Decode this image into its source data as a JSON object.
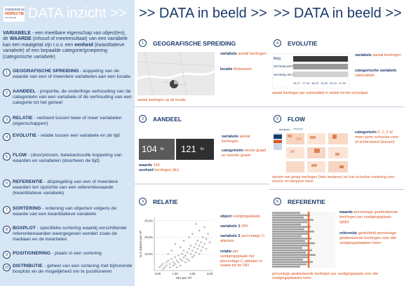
{
  "logo": {
    "line1": "ONDERWIJS",
    "line2": "INSPECTIE",
    "line3": "ocw onderwijs"
  },
  "titles": {
    "col1": "DATA inzicht >>",
    "col2": ">> DATA in beeld >>",
    "col3": ">> DATA in beeld >>"
  },
  "intro": {
    "term1": "VARIABELE",
    "t1": " - een meetbare eigenschap van ",
    "t1i": "object(en)",
    "t2": ", de ",
    "term2": "WAARDE",
    "t3": " (inhoud of meetresultaat) van een variabele kan een maatgetal zijn t.o.v. een ",
    "term3": "eenheid",
    "t4": " (",
    "t4i": "kwantitatieve variabele",
    "t5": ") of een bepaalde categorie/groepering (",
    "t5i": "categorische variabele",
    "t6": ")"
  },
  "definitions": [
    {
      "n": "1",
      "term": "GEOGRAFISCHE SPREIDING",
      "text": " - koppeling van de waarde van een of meerdere variabelen aan een locatie"
    },
    {
      "n": "2",
      "term": "AANDEEL",
      "text": " - proportie, de onderlinge verhouding van de categorieën van een variabele of de verhouding van een categorie tot het geheel"
    },
    {
      "n": "3",
      "term": "RELATIE",
      "text": " - verband tussen twee of meer variabelen (eigenschappen)"
    },
    {
      "n": "4",
      "term": "EVOLUTIE",
      "text": " - relatie tussen een variabele en de tijd"
    },
    {
      "n": "5",
      "term": "FLOW",
      "text": " - (door)stroom, betekenisvolle koppeling van waarden en variabelen (doorheen de tijd)"
    },
    {
      "n": "6",
      "term": "REFERENTIE",
      "text": " - afspiegeling van een of meerdere waarden ten opzichte van een ",
      "textItalic": "referentiewaarde",
      "textEnd": " (kwantitatieve variabele)"
    },
    {
      "n": "7",
      "term": "SORTERING",
      "text": " - ordening van objecten volgens de waarde van een kwantitatieve variabele"
    },
    {
      "n": "8",
      "term": "BOXPLOT",
      "text": " - specifieke sortering waarbij verschillende referentiewaarden weergegeven worden zoals de mediaan en de kwartielen"
    },
    {
      "n": "9",
      "term": "POSITIONERING",
      "text": " - plaats in een sortering"
    },
    {
      "n": "10",
      "term": "DISTRIBUTIE",
      "text": " - geheel van een sortering met bijhorende boxplots en de mogelijkheid om te positioneren"
    }
  ],
  "cards": {
    "geo": {
      "n": "1",
      "title": "GEOGRAFISCHE SPREIDING",
      "l1k": "variabele",
      "l1v": " aantal leerlingen",
      "l2k": "locatie",
      "l2v": " Antwerpen",
      "caption": "aantal leerlingen op de locatie"
    },
    "aandeel": {
      "n": "2",
      "title": "AANDEEL",
      "val1": "104",
      "unit1": "lln",
      "val2": "121",
      "unit2": "lln",
      "l1k": "variabele",
      "l1v": " aantal leerlingen",
      "l2k": "categorieën",
      "l2v": " eerste graad en tweede graad",
      "w1k": "waarde",
      "w1v": " 104",
      "w2k": "eenheid",
      "w2v": " leerlingen (lln)"
    },
    "relatie": {
      "n": "3",
      "title": "RELATIE",
      "l1k": "object",
      "l1v": " vestigingsplaats",
      "l2k": "variabele 1",
      "l2v": " OKI",
      "l3k": "variabele 2",
      "l3v": " percentage C-attesten",
      "l4k": "relatie",
      "l4v": " per vestigingsplaats het percentage C-attesten in relatie tot de OKI"
    },
    "evolutie": {
      "n": "4",
      "title": "EVOLUTIE",
      "rows": [
        "Belg",
        "niet Belg wel EU",
        "niet Belg niet EU"
      ],
      "cols": [
        "16-17",
        "17-18",
        "18-19",
        "19-20",
        "20-21",
        "21-22"
      ],
      "l1k": "variabele",
      "l1v": " aantal leerlingen",
      "l2k": "categorische variabele",
      "l2v": " nationaliteit",
      "caption": "aantal leerlingen per nationaliteit in relatie tot het schooljaar"
    },
    "flow": {
      "n": "5",
      "title": "FLOW",
      "legend": "leerjaren",
      "l1k": "categorieën",
      "l1v": " 0, 1, 2 of meer jaren schoolse voor- of achterstand (leunen)",
      "caption": "stroom van groep leerlingen (hele leerjaren) en hun schoolse vordering over school- en leerjaren heen"
    },
    "referentie": {
      "n": "6",
      "title": "REFERENTIE",
      "l1k": "waarde",
      "l1v": " percentage geattesteerde leerlingen per vestigingsplaats (grijs)",
      "l2k": "referentie",
      "l2v": " gemiddeld percentage geattesteerde leerlingen over alle vestigingsplaatsen heen",
      "caption": "percentage geattesteerde leerlingen per vestigingsplaats over alle vestigingsplaatsen heen"
    }
  },
  "chart_data": {
    "type": "scatter",
    "xlabel": "OKI per VP",
    "ylabel": "% C-attesten per VP",
    "xlim": [
      -0.2,
      3.2
    ],
    "ylim": [
      0,
      32
    ],
    "xticks": [
      "0,00",
      "1,00",
      "2,00",
      "3,00"
    ],
    "yticks": [
      "10,0%",
      "20,0%",
      "30,0%"
    ],
    "points": [
      [
        0.1,
        2
      ],
      [
        0.2,
        3
      ],
      [
        0.3,
        1
      ],
      [
        0.3,
        4
      ],
      [
        0.4,
        2
      ],
      [
        0.5,
        5
      ],
      [
        0.5,
        3
      ],
      [
        0.6,
        6
      ],
      [
        0.7,
        2
      ],
      [
        0.7,
        4
      ],
      [
        0.8,
        7
      ],
      [
        0.9,
        3
      ],
      [
        0.9,
        5
      ],
      [
        1.0,
        8
      ],
      [
        1.0,
        4
      ],
      [
        1.1,
        6
      ],
      [
        1.1,
        2
      ],
      [
        1.2,
        9
      ],
      [
        1.2,
        5
      ],
      [
        1.3,
        7
      ],
      [
        1.3,
        3
      ],
      [
        1.4,
        10
      ],
      [
        1.4,
        6
      ],
      [
        1.5,
        8
      ],
      [
        1.5,
        12
      ],
      [
        1.6,
        5
      ],
      [
        1.6,
        9
      ],
      [
        1.7,
        11
      ],
      [
        1.7,
        7
      ],
      [
        1.8,
        13
      ],
      [
        1.8,
        6
      ],
      [
        1.9,
        10
      ],
      [
        1.9,
        15
      ],
      [
        2.0,
        8
      ],
      [
        2.0,
        12
      ],
      [
        2.1,
        14
      ],
      [
        2.1,
        9
      ],
      [
        2.2,
        16
      ],
      [
        2.2,
        11
      ],
      [
        2.3,
        13
      ],
      [
        2.3,
        18
      ],
      [
        2.4,
        10
      ],
      [
        2.4,
        15
      ],
      [
        2.5,
        12
      ],
      [
        2.5,
        17
      ],
      [
        2.6,
        20
      ],
      [
        2.6,
        14
      ],
      [
        2.7,
        16
      ],
      [
        2.8,
        19
      ],
      [
        2.8,
        13
      ],
      [
        2.9,
        22
      ],
      [
        3.0,
        17
      ],
      [
        1.0,
        16
      ],
      [
        1.5,
        18
      ],
      [
        2.0,
        22
      ],
      [
        2.4,
        24
      ],
      [
        0.8,
        12
      ],
      [
        1.8,
        20
      ],
      [
        2.7,
        26
      ],
      [
        2.2,
        28
      ],
      [
        1.3,
        14
      ],
      [
        0.6,
        10
      ]
    ]
  }
}
